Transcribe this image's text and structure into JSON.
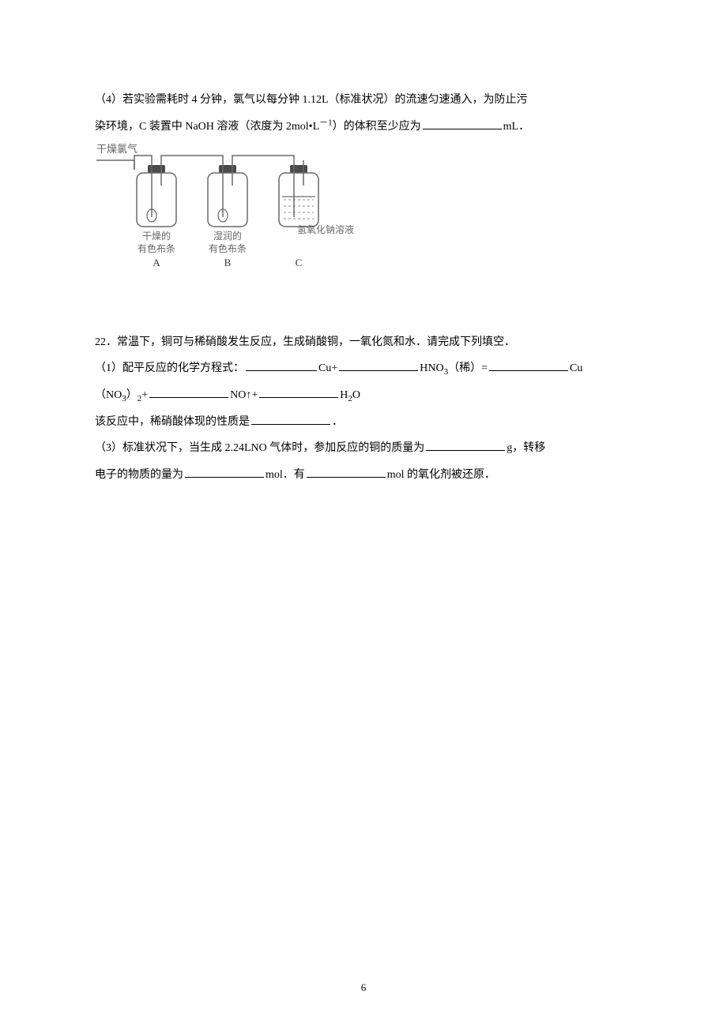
{
  "q21_p4_line1": "（4）若实验需耗时 4 分钟，氯气以每分钟 1.12L（标准状况）的流速匀速通入，为防止污",
  "q21_p4_line2a": "染环境，C 装置中 NaOH 溶液（浓度为 2mol•L",
  "q21_p4_sup": "－1",
  "q21_p4_line2b": "）的体积至少应为",
  "q21_p4_unit": "mL．",
  "diagram": {
    "gas_in_label": "干燥氯气",
    "bottleA_top": "干燥的",
    "bottleA_bottom": "有色布条",
    "bottleA_letter": "A",
    "bottleB_top": "湿润的",
    "bottleB_bottom": "有色布条",
    "bottleB_letter": "B",
    "bottleC_label": "氢氧化钠溶液",
    "bottleC_letter": "C",
    "stroke": "#6a6a6a",
    "label_color": "#666666",
    "letter_color": "#333333"
  },
  "q22_intro": "22．常温下，铜可与稀硝酸发生反应，生成硝酸铜，一氧化氮和水．请完成下列填空．",
  "q22_p1_a": "（1）配平反应的化学方程式：",
  "q22_p1_cu": "Cu+",
  "q22_p1_hno3_a": "HNO",
  "q22_p1_hno3_sub": "3",
  "q22_p1_dilute": "（稀）=",
  "q22_p1_cu2": "Cu",
  "q22_p1_no3_a": "（NO",
  "q22_p1_no3_sub1": "3",
  "q22_p1_no3_b": "）",
  "q22_p1_no3_sub2": "2",
  "q22_p1_plus": "+",
  "q22_p1_no": "NO↑+",
  "q22_p1_h2o_a": "H",
  "q22_p1_h2o_sub": "2",
  "q22_p1_h2o_b": "O",
  "q22_p2_a": "该反应中，稀硝酸体现的性质是",
  "q22_p2_b": "．",
  "q22_p3_a": "（3）标准状况下，当生成 2.24LNO 气体时，参加反应的铜的质量为",
  "q22_p3_b": "g，转移",
  "q22_p3_c": "电子的物质的量为",
  "q22_p3_d": "mol．有",
  "q22_p3_e": "mol 的氧化剂被还原．",
  "page_number": "6"
}
